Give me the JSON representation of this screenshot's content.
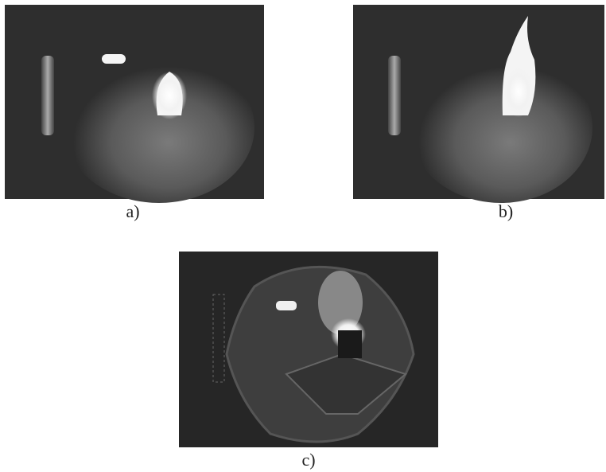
{
  "figure": {
    "panels": [
      {
        "caption": "a)"
      },
      {
        "caption": "b)"
      },
      {
        "caption": "c)"
      }
    ]
  }
}
